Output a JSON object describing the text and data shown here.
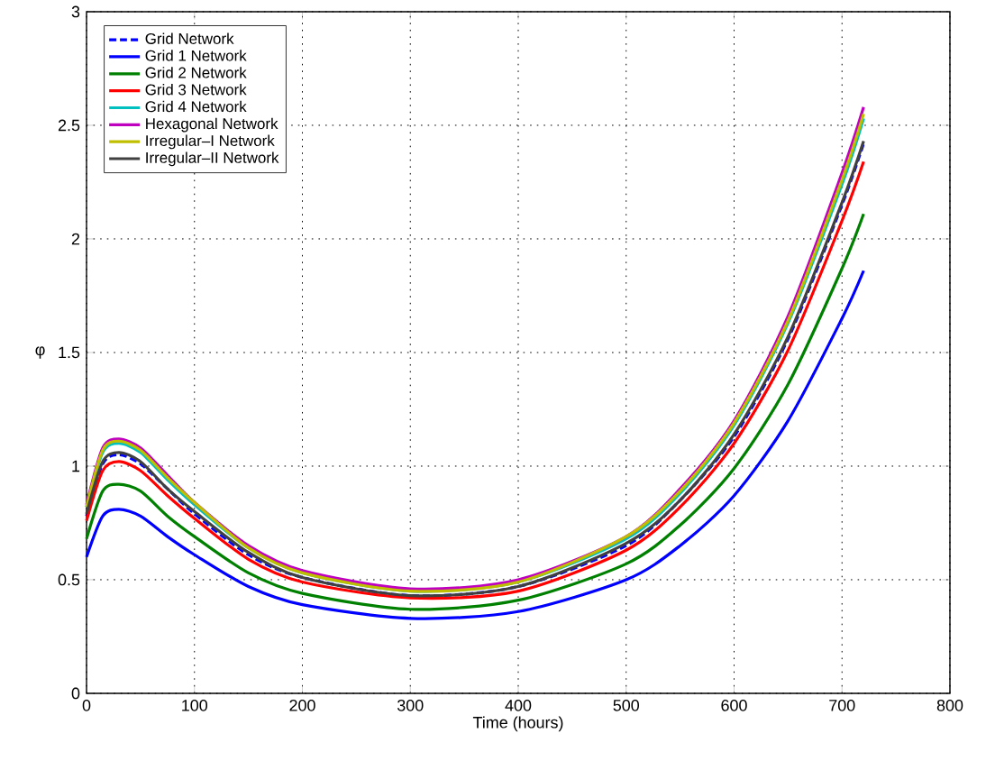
{
  "chart_data": {
    "type": "line",
    "xlabel": "Time (hours)",
    "ylabel": "φ",
    "x": [
      0,
      15,
      30,
      50,
      75,
      100,
      150,
      200,
      300,
      400,
      500,
      550,
      600,
      650,
      700,
      720
    ],
    "xlim": [
      0,
      800
    ],
    "xticks": [
      0,
      100,
      200,
      300,
      400,
      500,
      600,
      700,
      800
    ],
    "ylim": [
      0,
      3
    ],
    "yticks": [
      0,
      0.5,
      1,
      1.5,
      2,
      2.5,
      3
    ],
    "grid": true,
    "legend": "top left",
    "marker": "none",
    "series": [
      {
        "name": "Grid Network",
        "color": "#0000ff",
        "line_style": "dashed",
        "values": [
          0.78,
          1.01,
          1.05,
          1.01,
          0.9,
          0.79,
          0.61,
          0.51,
          0.43,
          0.47,
          0.65,
          0.85,
          1.13,
          1.56,
          2.15,
          2.42
        ]
      },
      {
        "name": "Grid 1 Network",
        "color": "#0000ff",
        "values": [
          0.6,
          0.78,
          0.81,
          0.78,
          0.69,
          0.61,
          0.47,
          0.39,
          0.33,
          0.36,
          0.5,
          0.65,
          0.87,
          1.2,
          1.65,
          1.86
        ]
      },
      {
        "name": "Grid 2 Network",
        "color": "#008000",
        "values": [
          0.68,
          0.89,
          0.92,
          0.89,
          0.78,
          0.69,
          0.53,
          0.44,
          0.37,
          0.41,
          0.57,
          0.74,
          0.99,
          1.36,
          1.87,
          2.11
        ]
      },
      {
        "name": "Grid 3 Network",
        "color": "#ff0000",
        "values": [
          0.76,
          0.98,
          1.02,
          0.98,
          0.87,
          0.77,
          0.59,
          0.49,
          0.42,
          0.45,
          0.63,
          0.82,
          1.1,
          1.51,
          2.08,
          2.34
        ]
      },
      {
        "name": "Grid 4 Network",
        "color": "#00bfbf",
        "values": [
          0.82,
          1.06,
          1.1,
          1.06,
          0.94,
          0.83,
          0.64,
          0.53,
          0.45,
          0.49,
          0.68,
          0.88,
          1.18,
          1.63,
          2.24,
          2.53
        ]
      },
      {
        "name": "Hexagonal Network",
        "color": "#bf00bf",
        "values": [
          0.83,
          1.08,
          1.12,
          1.08,
          0.96,
          0.84,
          0.65,
          0.54,
          0.46,
          0.5,
          0.69,
          0.9,
          1.2,
          1.66,
          2.29,
          2.58
        ]
      },
      {
        "name": "Irregular–I Network",
        "color": "#bfbf00",
        "values": [
          0.82,
          1.07,
          1.11,
          1.07,
          0.95,
          0.84,
          0.64,
          0.53,
          0.45,
          0.49,
          0.69,
          0.89,
          1.19,
          1.64,
          2.26,
          2.55
        ]
      },
      {
        "name": "Irregular–II Network",
        "color": "#404040",
        "values": [
          0.79,
          1.02,
          1.06,
          1.02,
          0.9,
          0.8,
          0.62,
          0.51,
          0.43,
          0.47,
          0.66,
          0.85,
          1.14,
          1.57,
          2.16,
          2.43
        ]
      }
    ]
  }
}
